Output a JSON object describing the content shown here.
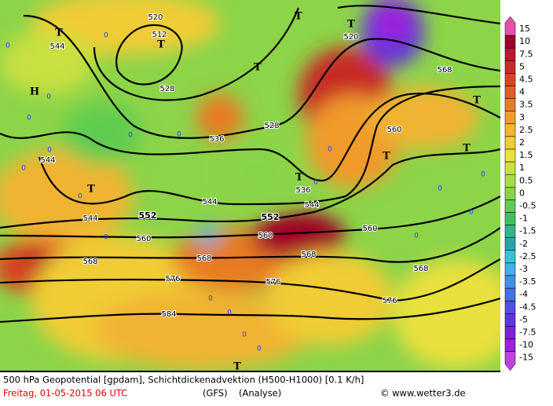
{
  "map": {
    "contour_labels": [
      "512",
      "520",
      "520",
      "544",
      "528",
      "528",
      "536",
      "544",
      "536",
      "544",
      "544",
      "544",
      "552",
      "552",
      "560",
      "560",
      "560",
      "560",
      "568",
      "568",
      "568",
      "568",
      "568",
      "576",
      "576",
      "576",
      "584"
    ],
    "pressure_centers": [
      "H",
      "T",
      "T",
      "T",
      "T",
      "T",
      "T",
      "T",
      "T",
      "T",
      "T",
      "T"
    ],
    "zero_labels": [
      "0",
      "0",
      "0",
      "0",
      "0",
      "0",
      "0",
      "0",
      "0",
      "0",
      "0",
      "0",
      "0",
      "0",
      "0",
      "0",
      "0",
      "0",
      "0",
      "0"
    ]
  },
  "colorbar": {
    "labels": [
      "15",
      "10",
      "7.5",
      "5",
      "4.5",
      "4",
      "3.5",
      "3",
      "2.5",
      "2",
      "1.5",
      "1",
      "0.5",
      "0",
      "-0.5",
      "-1",
      "-1.5",
      "-2",
      "-2.5",
      "-3",
      "-3.5",
      "-4",
      "-4.5",
      "-5",
      "-7.5",
      "-10",
      "-15"
    ],
    "colors": [
      "#e84fa8",
      "#a00028",
      "#b81830",
      "#c82c28",
      "#d84422",
      "#e05e20",
      "#e87a24",
      "#f09a2c",
      "#f0b430",
      "#f0cc34",
      "#e8e03c",
      "#c8e040",
      "#a8dc44",
      "#88d448",
      "#60cc50",
      "#40c060",
      "#30b488",
      "#28a4a8",
      "#30c4d4",
      "#40b0e8",
      "#4090e8",
      "#4070e4",
      "#5050e0",
      "#6034dc",
      "#7c20dc",
      "#9c20dc",
      "#c040e0"
    ]
  },
  "footer": {
    "title": "500 hPa Geopotential [gpdam], Schichtdickenadvektion (H500-H1000) [0.1 K/h]",
    "date": "Freitag, 01-05-2015  06 UTC",
    "model": "(GFS)",
    "analysis": "(Analyse)",
    "credit": "© www.wetter3.de"
  }
}
